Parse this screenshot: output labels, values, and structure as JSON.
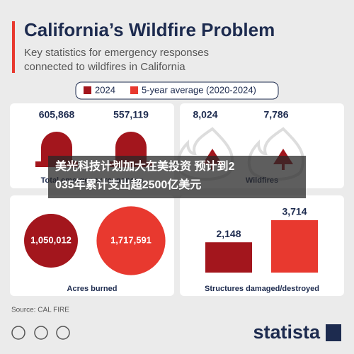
{
  "header": {
    "title": "California’s Wildfire Problem",
    "subtitle_lines": [
      "Key statistics for emergency responses",
      "connected to wildfires in California"
    ]
  },
  "legend": [
    {
      "label": "2024",
      "color": "#a3161d"
    },
    {
      "label": "5-year average (2020-2024)",
      "color": "#e8392f"
    }
  ],
  "panels": [
    {
      "label": "Total emergency responses",
      "values": [
        605868,
        557119
      ],
      "value_labels": [
        "605,868",
        "557,119"
      ]
    },
    {
      "label": "Wildfires",
      "values": [
        8024,
        7786
      ],
      "value_labels": [
        "8,024",
        "7,786"
      ]
    },
    {
      "label": "Acres burned",
      "values": [
        1050012,
        1717591
      ],
      "value_labels": [
        "1,050,012",
        "1,717,591"
      ]
    },
    {
      "label": "Structures damaged/destroyed",
      "values": [
        2148,
        3714
      ],
      "value_labels": [
        "2,148",
        "3,714"
      ]
    }
  ],
  "source": "Source: CAL FIRE",
  "brand": "statista",
  "overlay": {
    "lines": [
      "美光科技计划加大在美投资 预计到2",
      "035年累计支出超2500亿美元"
    ]
  }
}
